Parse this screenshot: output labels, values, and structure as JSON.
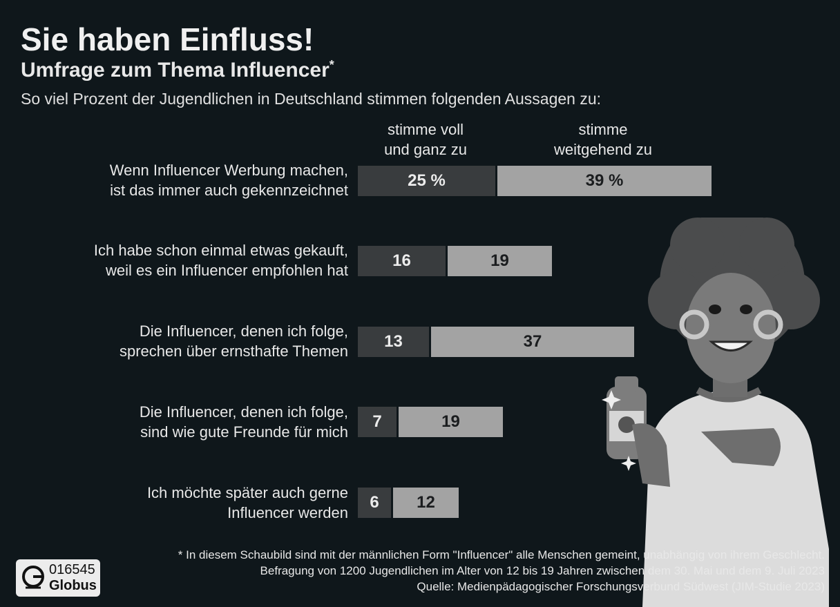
{
  "header": {
    "title": "Sie haben Einfluss!",
    "subtitle": "Umfrage zum Thema Influencer",
    "subtitle_mark": "*",
    "intro": "So viel Prozent der Jugendlichen in Deutschland stimmen folgenden Aussagen zu:"
  },
  "legend": {
    "series_a": "stimme voll\nund ganz zu",
    "series_b": "stimme\nweitgehend zu"
  },
  "chart_data": {
    "type": "bar",
    "orientation": "horizontal",
    "stacked": true,
    "title": "Sie haben Einfluss!",
    "subtitle": "Umfrage zum Thema Influencer*",
    "unit": "%",
    "categories": [
      "Wenn Influencer Werbung machen, ist das immer auch gekennzeichnet",
      "Ich habe schon einmal etwas gekauft, weil es ein Influencer empfohlen hat",
      "Die Influencer, denen ich folge, sprechen über ernsthafte Themen",
      "Die Influencer, denen ich folge, sind wie gute Freunde für mich",
      "Ich möchte später auch gerne Influencer werden"
    ],
    "series": [
      {
        "name": "stimme voll und ganz zu",
        "values": [
          25,
          16,
          13,
          7,
          6
        ],
        "color": "#393c3e"
      },
      {
        "name": "stimme weitgehend zu",
        "values": [
          39,
          19,
          37,
          19,
          12
        ],
        "color": "#a3a3a3"
      }
    ],
    "value_labels": [
      [
        "25 %",
        "16",
        "13",
        "7",
        "6"
      ],
      [
        "39 %",
        "19",
        "37",
        "19",
        "12"
      ]
    ],
    "grid": false,
    "legend_position": "top"
  },
  "statements": [
    {
      "line1": "Wenn Influencer Werbung machen,",
      "line2": "ist das immer auch gekennzeichnet"
    },
    {
      "line1": "Ich habe schon einmal etwas gekauft,",
      "line2": "weil es ein Influencer empfohlen hat"
    },
    {
      "line1": "Die Influencer, denen ich folge,",
      "line2": "sprechen über ernsthafte Themen"
    },
    {
      "line1": "Die Influencer, denen ich folge,",
      "line2": "sind wie gute Freunde für mich"
    },
    {
      "line1": "Ich möchte später auch gerne",
      "line2": "Influencer werden"
    }
  ],
  "footer": {
    "note": "* In diesem Schaubild sind mit der männlichen Form \"Influencer\" alle Menschen gemeint, unabhängig von ihrem Geschlecht.",
    "survey": "Befragung von 1200 Jugendlichen im Alter von 12 bis 19 Jahren zwischen dem 30. Mai und dem 9. Juli 2023",
    "source": "Quelle: Medienpädagogischer Forschungsverbund Südwest (JIM-Studie 2023)"
  },
  "logo": {
    "code": "016545",
    "brand": "Globus"
  },
  "colors": {
    "background": "#0f171b",
    "series_a": "#393c3e",
    "series_b": "#a3a3a3"
  }
}
